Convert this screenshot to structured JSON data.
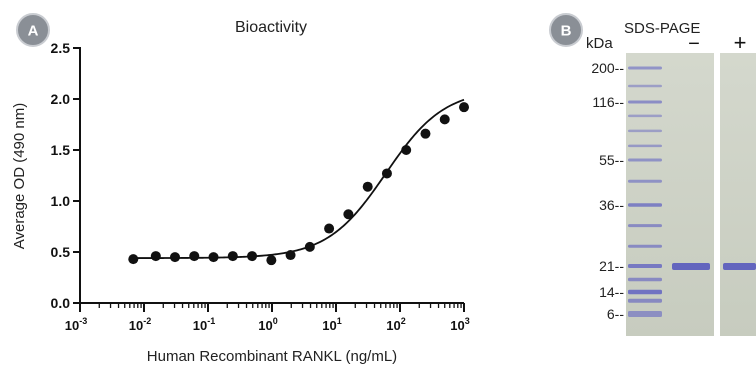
{
  "panel_a": {
    "badge": "A",
    "chart_data": {
      "type": "scatter",
      "title": "Bioactivity",
      "xlabel": "Human Recombinant RANKL (ng/mL)",
      "ylabel": "Average OD (490 nm)",
      "x_scale": "log",
      "xlim": [
        0.001,
        1000
      ],
      "ylim": [
        0,
        2.5
      ],
      "y_ticks": [
        "0.0",
        "0.5",
        "1.0",
        "1.5",
        "2.0",
        "2.5"
      ],
      "x_ticks": [
        {
          "value": 0.001,
          "base": "10",
          "exp": "-3"
        },
        {
          "value": 0.01,
          "base": "10",
          "exp": "-2"
        },
        {
          "value": 0.1,
          "base": "10",
          "exp": "-1"
        },
        {
          "value": 1,
          "base": "10",
          "exp": "0"
        },
        {
          "value": 10,
          "base": "10",
          "exp": "1"
        },
        {
          "value": 100,
          "base": "10",
          "exp": "2"
        },
        {
          "value": 1000,
          "base": "10",
          "exp": "3"
        }
      ],
      "points": [
        {
          "x": 0.0068,
          "y": 0.43
        },
        {
          "x": 0.0153,
          "y": 0.46
        },
        {
          "x": 0.0305,
          "y": 0.45
        },
        {
          "x": 0.061,
          "y": 0.46
        },
        {
          "x": 0.122,
          "y": 0.45
        },
        {
          "x": 0.244,
          "y": 0.46
        },
        {
          "x": 0.488,
          "y": 0.46
        },
        {
          "x": 0.977,
          "y": 0.42
        },
        {
          "x": 1.95,
          "y": 0.47
        },
        {
          "x": 3.9,
          "y": 0.55
        },
        {
          "x": 7.8,
          "y": 0.73
        },
        {
          "x": 15.6,
          "y": 0.87
        },
        {
          "x": 31.3,
          "y": 1.14
        },
        {
          "x": 62.5,
          "y": 1.27
        },
        {
          "x": 125,
          "y": 1.5
        },
        {
          "x": 250,
          "y": 1.66
        },
        {
          "x": 500,
          "y": 1.8
        },
        {
          "x": 1000,
          "y": 1.92
        }
      ],
      "fit": {
        "bottom": 0.44,
        "top": 2.1,
        "ec50": 60,
        "hill": 0.95
      },
      "grid": false
    }
  },
  "panel_b": {
    "badge": "B",
    "title": "SDS-PAGE",
    "kda_label": "kDa",
    "lanes": {
      "minus": "−",
      "plus": "+"
    },
    "markers": [
      {
        "label": "200--",
        "kda": 200
      },
      {
        "label": "116--",
        "kda": 116
      },
      {
        "label": "55--",
        "kda": 55
      },
      {
        "label": "36--",
        "kda": 36
      },
      {
        "label": "21--",
        "kda": 21
      },
      {
        "label": "14--",
        "kda": 14
      },
      {
        "label": "6--",
        "kda": 6
      }
    ],
    "colors": {
      "gel_bg": "#cfd3c8",
      "band": "#4e4fb8",
      "marker_band": "#5b5cc2"
    }
  }
}
